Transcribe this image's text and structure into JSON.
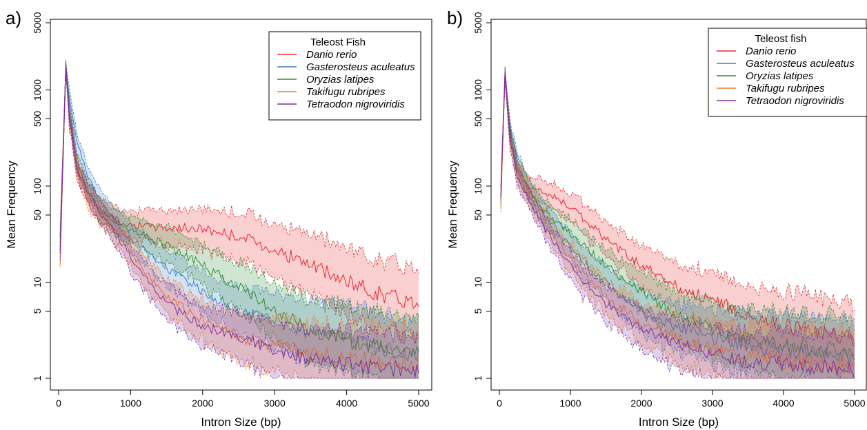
{
  "chart_data": [
    {
      "panel_label": "a)",
      "type": "line",
      "xlabel": "Intron Size (bp)",
      "ylabel": "Mean Frequency",
      "xlim": [
        0,
        5000
      ],
      "ylim": [
        1,
        5000
      ],
      "yscale": "log",
      "x_ticks": [
        "0",
        "1000",
        "2000",
        "3000",
        "4000",
        "5000"
      ],
      "y_ticks": [
        "1",
        "5",
        "10",
        "50",
        "100",
        "500",
        "1000",
        "5000"
      ],
      "legend_title": "Teleost Fish",
      "legend_position": "top-right",
      "bands": "shaded confidence band with dashed bounds around each series",
      "series": [
        {
          "name": "Danio rerio",
          "color": "#e8262b",
          "x": [
            20,
            100,
            150,
            250,
            400,
            600,
            800,
            1000,
            1200,
            1500,
            2000,
            2500,
            3000,
            3500,
            4000,
            4500,
            5000
          ],
          "y": [
            30,
            1800,
            600,
            150,
            85,
            55,
            45,
            40,
            38,
            37,
            36,
            30,
            22,
            15,
            10,
            7.5,
            6
          ]
        },
        {
          "name": "Gasterosteus aculeatus",
          "color": "#3a7bd5",
          "x": [
            20,
            100,
            150,
            250,
            400,
            600,
            800,
            1000,
            1200,
            1500,
            2000,
            2500,
            3000,
            3500,
            4000,
            4500,
            5000
          ],
          "y": [
            25,
            1800,
            800,
            300,
            130,
            65,
            42,
            30,
            22,
            14,
            8,
            5,
            4,
            3,
            2.5,
            2,
            1.8
          ]
        },
        {
          "name": "Oryzias latipes",
          "color": "#2e8b34",
          "x": [
            20,
            100,
            150,
            250,
            400,
            600,
            800,
            1000,
            1200,
            1500,
            2000,
            2500,
            3000,
            3500,
            4000,
            4500,
            5000
          ],
          "y": [
            20,
            1800,
            600,
            180,
            90,
            55,
            42,
            35,
            30,
            24,
            15,
            9,
            5,
            3.2,
            2.5,
            2.1,
            2
          ]
        },
        {
          "name": "Takifugu rubripes",
          "color": "#f07c2c",
          "x": [
            20,
            100,
            150,
            250,
            400,
            600,
            800,
            1000,
            1200,
            1500,
            2000,
            2500,
            3000,
            3500,
            4000,
            4500,
            5000
          ],
          "y": [
            15,
            1800,
            500,
            160,
            80,
            48,
            32,
            20,
            13,
            7,
            4,
            2.7,
            2.2,
            1.8,
            1.6,
            1.5,
            1.4
          ]
        },
        {
          "name": "Tetraodon nigroviridis",
          "color": "#7b2fa0",
          "x": [
            20,
            100,
            150,
            250,
            400,
            600,
            800,
            1000,
            1200,
            1500,
            2000,
            2500,
            3000,
            3500,
            4000,
            4500,
            5000
          ],
          "y": [
            20,
            1800,
            500,
            160,
            85,
            50,
            32,
            18,
            11,
            6,
            3.5,
            2.6,
            2,
            1.6,
            1.4,
            1.3,
            1.2
          ]
        }
      ]
    },
    {
      "panel_label": "b)",
      "type": "line",
      "xlabel": "Intron Size (bp)",
      "ylabel": "Mean Frequency",
      "xlim": [
        0,
        5000
      ],
      "ylim": [
        1,
        5000
      ],
      "yscale": "log",
      "x_ticks": [
        "0",
        "1000",
        "2000",
        "3000",
        "4000",
        "5000"
      ],
      "y_ticks": [
        "1",
        "5",
        "10",
        "50",
        "100",
        "500",
        "1000",
        "5000"
      ],
      "legend_title": "Teleost fish",
      "legend_position": "top-right",
      "bands": "shaded confidence band with dashed bounds around each series",
      "series": [
        {
          "name": "Danio rerio",
          "color": "#e8262b",
          "x": [
            20,
            80,
            150,
            250,
            400,
            600,
            800,
            1000,
            1200,
            1500,
            2000,
            2500,
            3000,
            3500,
            4000,
            4500,
            5000
          ],
          "y": [
            90,
            1500,
            350,
            150,
            100,
            88,
            75,
            60,
            45,
            28,
            15,
            9,
            6.5,
            4.5,
            3.5,
            3,
            2.7
          ]
        },
        {
          "name": "Gasterosteus aculeatus",
          "color": "#3a7bd5",
          "x": [
            20,
            80,
            150,
            250,
            400,
            600,
            800,
            1000,
            1200,
            1500,
            2000,
            2500,
            3000,
            3500,
            4000,
            4500,
            5000
          ],
          "y": [
            70,
            1500,
            400,
            180,
            100,
            55,
            35,
            24,
            16,
            10,
            5,
            3.5,
            2.7,
            2.2,
            2,
            1.8,
            1.7
          ]
        },
        {
          "name": "Oryzias latipes",
          "color": "#2e8b34",
          "x": [
            20,
            80,
            150,
            250,
            400,
            600,
            800,
            1000,
            1200,
            1500,
            2000,
            2500,
            3000,
            3500,
            4000,
            4500,
            5000
          ],
          "y": [
            70,
            1500,
            350,
            160,
            95,
            60,
            42,
            32,
            24,
            15,
            8,
            4.5,
            3.2,
            2.6,
            2.2,
            2,
            1.9
          ]
        },
        {
          "name": "Takifugu rubripes",
          "color": "#f07c2c",
          "x": [
            20,
            80,
            150,
            250,
            400,
            600,
            800,
            1000,
            1200,
            1500,
            2000,
            2500,
            3000,
            3500,
            4000,
            4500,
            5000
          ],
          "y": [
            60,
            1500,
            300,
            140,
            85,
            45,
            28,
            18,
            12,
            7,
            3.8,
            2.6,
            2,
            1.7,
            1.5,
            1.4,
            1.3
          ]
        },
        {
          "name": "Tetraodon nigroviridis",
          "color": "#7b2fa0",
          "x": [
            20,
            80,
            150,
            250,
            400,
            600,
            800,
            1000,
            1200,
            1500,
            2000,
            2500,
            3000,
            3500,
            4000,
            4500,
            5000
          ],
          "y": [
            80,
            1500,
            300,
            130,
            75,
            40,
            24,
            15,
            10,
            6,
            3.2,
            2.3,
            1.8,
            1.5,
            1.4,
            1.3,
            1.2
          ]
        }
      ]
    }
  ]
}
